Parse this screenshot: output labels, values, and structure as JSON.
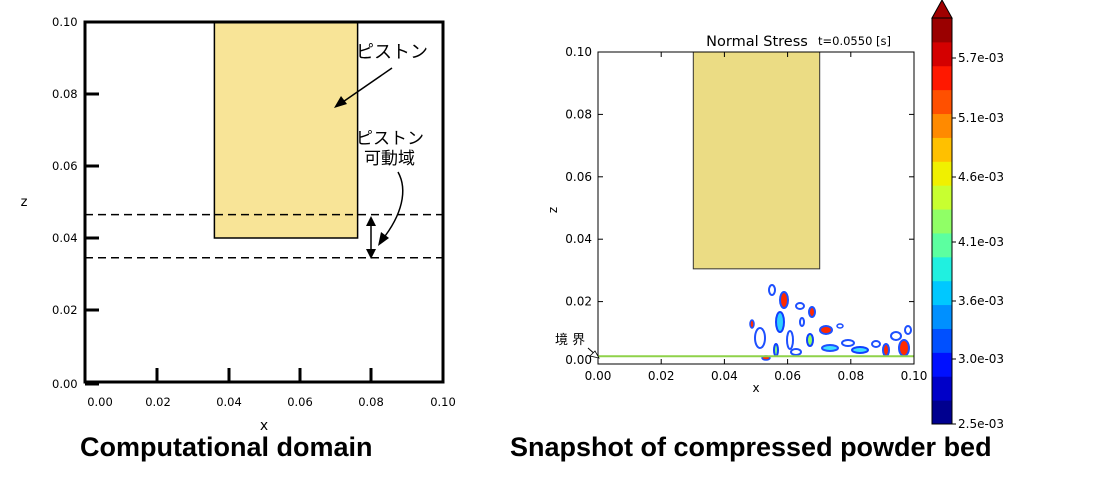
{
  "left_panel": {
    "caption": "Computational domain",
    "xlabel": "x",
    "ylabel": "z",
    "xticks": [
      "0.00",
      "0.02",
      "0.04",
      "0.06",
      "0.08",
      "0.10"
    ],
    "yticks": [
      "0.00",
      "0.02",
      "0.04",
      "0.06",
      "0.08",
      "0.10"
    ],
    "piston_label": "ピストン",
    "range_label_line1": "ピストン",
    "range_label_line2": "可動域",
    "piston": {
      "x0": 0.03,
      "x1": 0.07,
      "z_bottom": 0.04,
      "z_top": 0.1
    },
    "dashed_lines_z": [
      0.0465,
      0.0345
    ],
    "piston_color": "#f8e497"
  },
  "right_panel": {
    "caption": "Snapshot of compressed powder bed",
    "title": "Normal Stress",
    "time_label": "t=0.0550 [s]",
    "xlabel": "x",
    "ylabel": "z",
    "xticks": [
      "0.00",
      "0.02",
      "0.04",
      "0.06",
      "0.08",
      "0.10"
    ],
    "yticks": [
      "0.00",
      "0.02",
      "0.04",
      "0.06",
      "0.08",
      "0.10"
    ],
    "boundary_label": "境 界",
    "piston": {
      "x0": 0.03,
      "x1": 0.07,
      "z_bottom": 0.0305,
      "z_top": 0.1
    },
    "boundary_z": 0.0025,
    "piston_color": "#ebdc84",
    "boundary_color": "#8fd24a",
    "colorbar": {
      "ticks": [
        "5.7e-03",
        "5.1e-03",
        "4.6e-03",
        "4.1e-03",
        "3.6e-03",
        "3.0e-03",
        "2.5e-03"
      ],
      "colors": [
        "#00008f",
        "#0000c8",
        "#0010ff",
        "#0050ff",
        "#0090ff",
        "#00c8ff",
        "#20f0e0",
        "#5cffa0",
        "#90ff66",
        "#c8ff30",
        "#f0f000",
        "#ffc000",
        "#ff8a00",
        "#ff5000",
        "#ff1800",
        "#d40000",
        "#9a0000"
      ]
    }
  }
}
